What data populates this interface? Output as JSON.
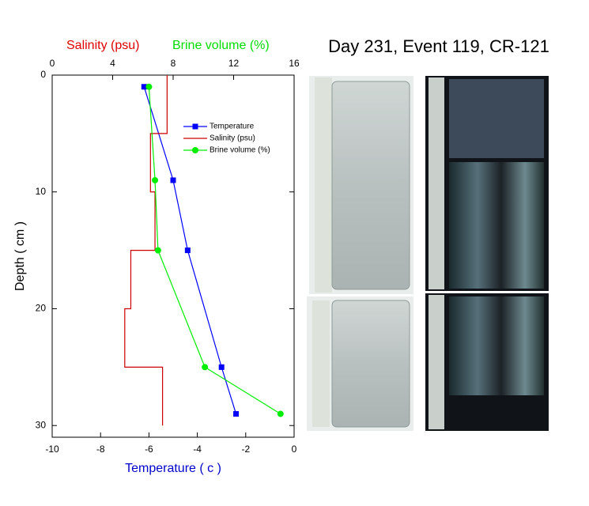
{
  "chart_data": {
    "type": "profile",
    "title": "Day 231, Event 119, CR-121",
    "x_label": "Temperature ( c )",
    "x_label_color": "#0000cc",
    "top_labels": [
      {
        "text": "Salinity (psu)",
        "color": "#e00000"
      },
      {
        "text": "Brine volume (%)",
        "color": "#00dd00"
      }
    ],
    "y_label": "Depth ( cm )",
    "xlim": [
      -10,
      0
    ],
    "xticks": [
      -10,
      -8,
      -6,
      -4,
      -2,
      0
    ],
    "x2lim": [
      0,
      16
    ],
    "x2ticks": [
      0,
      4,
      8,
      12,
      16
    ],
    "ylim": [
      0,
      31
    ],
    "yticks": [
      0,
      10,
      20,
      30
    ],
    "y_inverted": true,
    "series": [
      {
        "name": "Temperature",
        "color": "#0000ff",
        "axis": "x",
        "marker": "square",
        "depth": [
          1,
          9,
          15,
          25,
          29
        ],
        "values": [
          -6.2,
          -5.0,
          -4.4,
          -3.0,
          -2.4
        ]
      },
      {
        "name": "Salinity (psu)",
        "color": "#cc0000",
        "axis": "x2",
        "marker": "none",
        "depth": [
          0,
          5,
          5,
          10,
          10,
          15,
          15,
          20,
          20,
          25,
          25,
          30
        ],
        "values": [
          7.6,
          7.6,
          6.5,
          6.5,
          6.8,
          6.8,
          5.2,
          5.2,
          4.8,
          4.8,
          7.3,
          7.3
        ]
      },
      {
        "name": "Brine volume (%)",
        "color": "#00ee00",
        "axis": "x2",
        "marker": "circle",
        "depth": [
          1,
          9,
          15,
          25,
          29
        ],
        "values": [
          6.4,
          6.8,
          7.0,
          10.1,
          15.1
        ]
      }
    ]
  }
}
